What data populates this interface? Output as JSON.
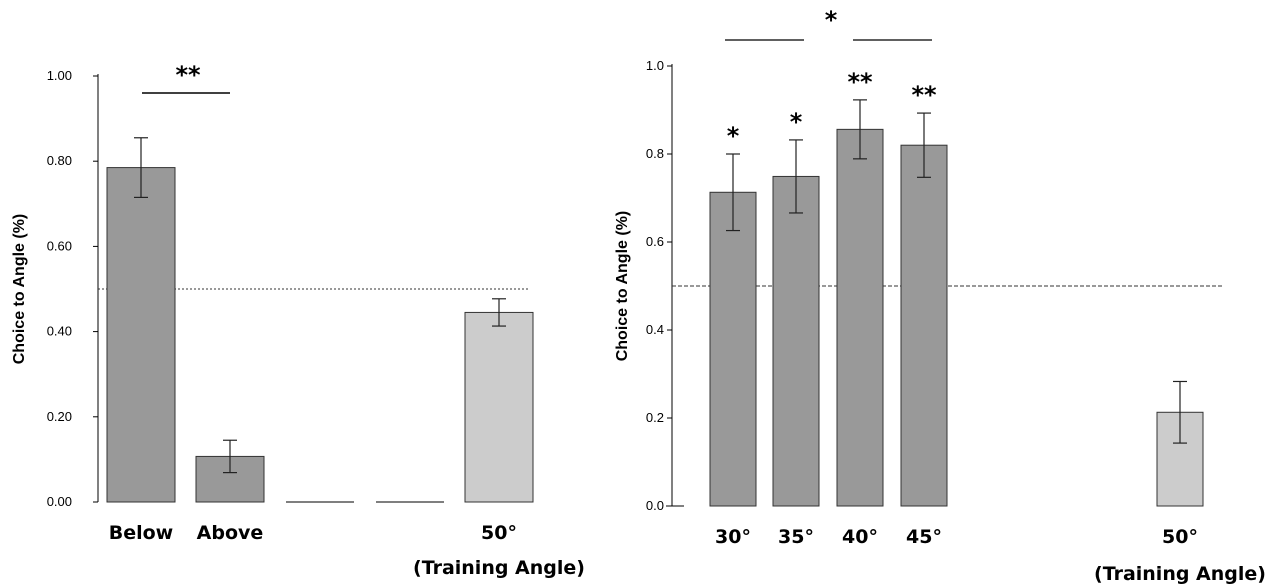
{
  "chart_data": [
    {
      "type": "bar",
      "ylabel": "Choice to Angle (%)",
      "ylim": [
        0,
        1.0
      ],
      "yticks": [
        "0.00",
        "0.20",
        "0.40",
        "0.60",
        "0.80",
        "1.00"
      ],
      "categories": [
        "Below",
        "Above",
        "",
        "",
        "50°"
      ],
      "category_sublabels": [
        "",
        "",
        "",
        "",
        "(Training Angle)"
      ],
      "values": [
        0.785,
        0.107,
        0,
        0,
        0.445
      ],
      "errors": [
        0.07,
        0.038,
        0,
        0,
        0.032
      ],
      "bar_colors": [
        "#999999",
        "#999999",
        "#999999",
        "#999999",
        "#cccccc"
      ],
      "chance_line": 0.5,
      "significance": [
        {
          "label": "**",
          "from": 0,
          "to": 1
        }
      ]
    },
    {
      "type": "bar",
      "ylabel": "Choice to Angle (%)",
      "ylim": [
        0,
        1.0
      ],
      "yticks": [
        "0.0",
        "0.2",
        "0.4",
        "0.6",
        "0.8",
        "1.0"
      ],
      "categories": [
        "30°",
        "35°",
        "40°",
        "45°",
        "50°"
      ],
      "category_sublabels": [
        "",
        "",
        "",
        "",
        "(Training Angle)"
      ],
      "values": [
        0.713,
        0.749,
        0.856,
        0.82,
        0.213
      ],
      "errors": [
        0.087,
        0.083,
        0.067,
        0.073,
        0.07
      ],
      "bar_colors": [
        "#999999",
        "#999999",
        "#999999",
        "#999999",
        "#cccccc"
      ],
      "bar_markers": [
        "*",
        "*",
        "**",
        "**",
        ""
      ],
      "chance_line": 0.5,
      "significance": [
        {
          "label": "*",
          "from": 0,
          "to": 3
        }
      ]
    }
  ]
}
